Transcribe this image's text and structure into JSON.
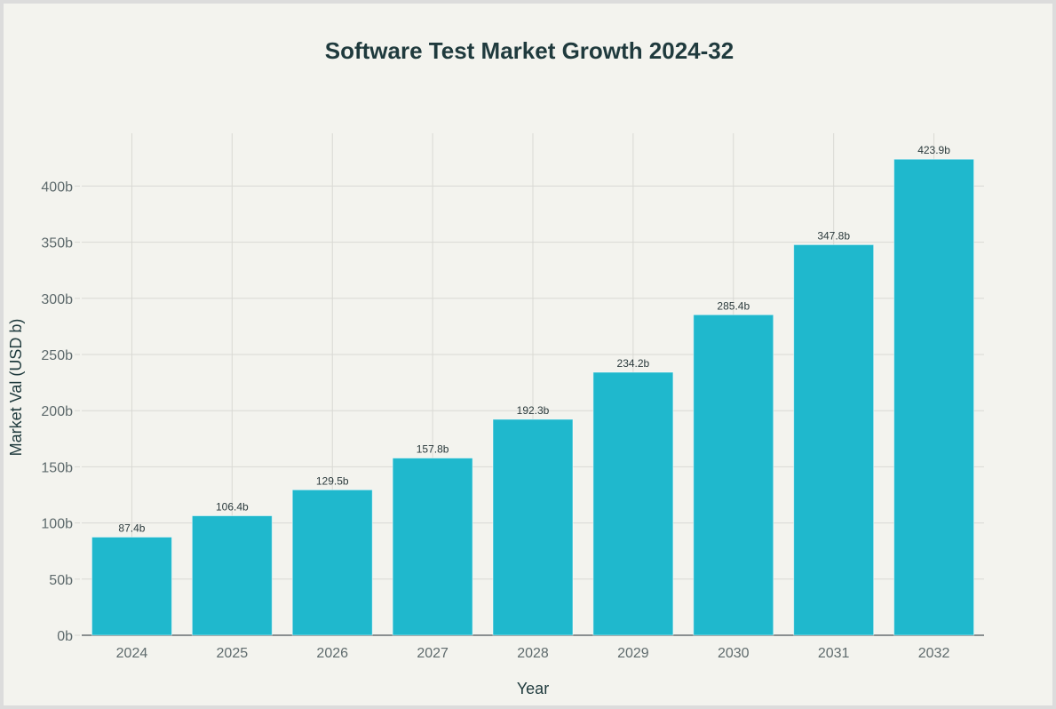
{
  "chart_data": {
    "type": "bar",
    "title": "Software Test Market Growth 2024-32",
    "xlabel": "Year",
    "ylabel": "Market Val (USD b)",
    "categories": [
      "2024",
      "2025",
      "2026",
      "2027",
      "2028",
      "2029",
      "2030",
      "2031",
      "2032"
    ],
    "values": [
      87.4,
      106.4,
      129.5,
      157.8,
      192.3,
      234.2,
      285.4,
      347.8,
      423.9
    ],
    "data_labels": [
      "87.4b",
      "106.4b",
      "129.5b",
      "157.8b",
      "192.3b",
      "234.2b",
      "285.4b",
      "347.8b",
      "423.9b"
    ],
    "yticks": [
      0,
      50,
      100,
      150,
      200,
      250,
      300,
      350,
      400
    ],
    "ytick_labels": [
      "0b",
      "50b",
      "100b",
      "150b",
      "200b",
      "250b",
      "300b",
      "350b",
      "400b"
    ],
    "ylim": [
      0,
      447
    ],
    "grid": true,
    "colors": {
      "bar": "#1fb8cd",
      "title": "#1f3a3d",
      "tick": "#5f6b6d",
      "grid": "#d9d9d4"
    }
  }
}
